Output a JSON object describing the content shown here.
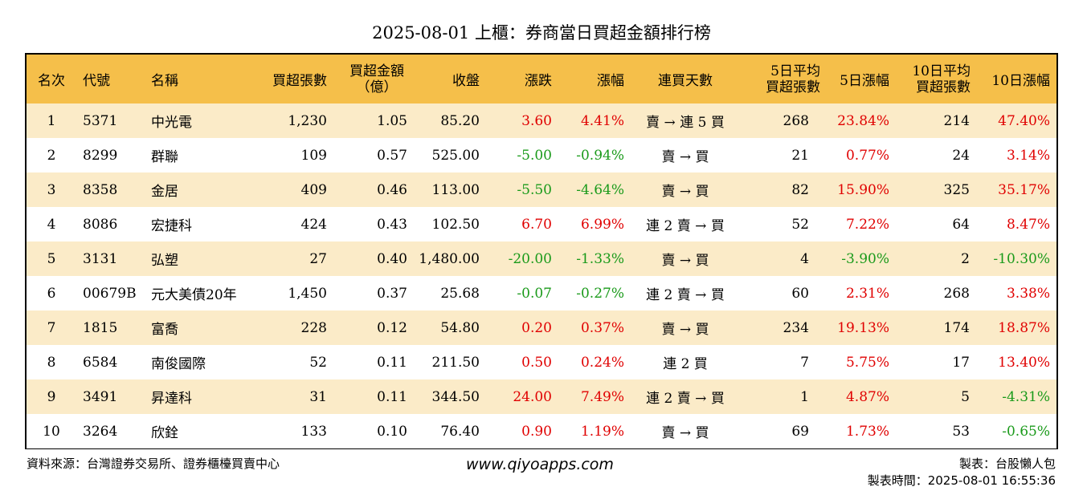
{
  "title": "2025-08-01 上櫃：券商當日買超金額排行榜",
  "headers": {
    "rank": "名次",
    "code": "代號",
    "name": "名稱",
    "buy_volume": "買超張數",
    "buy_amount_1": "買超金額",
    "buy_amount_2": "（億）",
    "close": "收盤",
    "change": "漲跌",
    "pct": "漲幅",
    "days": "連買天數",
    "avg5_1": "5日平均",
    "avg5_2": "買超張數",
    "pct5": "5日漲幅",
    "avg10_1": "10日平均",
    "avg10_2": "買超張數",
    "pct10": "10日漲幅"
  },
  "rows": [
    {
      "rank": "1",
      "code": "5371",
      "name": "中光電",
      "vol": "1,230",
      "amt": "1.05",
      "close": "85.20",
      "chg": "3.60",
      "chg_dir": "up",
      "pct": "4.41%",
      "pct_dir": "up",
      "days": "賣 → 連 5 買",
      "avg5": "268",
      "pct5": "23.84%",
      "pct5_dir": "up",
      "avg10": "214",
      "pct10": "47.40%",
      "pct10_dir": "up"
    },
    {
      "rank": "2",
      "code": "8299",
      "name": "群聯",
      "vol": "109",
      "amt": "0.57",
      "close": "525.00",
      "chg": "-5.00",
      "chg_dir": "down",
      "pct": "-0.94%",
      "pct_dir": "down",
      "days": "賣 → 買",
      "avg5": "21",
      "pct5": "0.77%",
      "pct5_dir": "up",
      "avg10": "24",
      "pct10": "3.14%",
      "pct10_dir": "up"
    },
    {
      "rank": "3",
      "code": "8358",
      "name": "金居",
      "vol": "409",
      "amt": "0.46",
      "close": "113.00",
      "chg": "-5.50",
      "chg_dir": "down",
      "pct": "-4.64%",
      "pct_dir": "down",
      "days": "賣 → 買",
      "avg5": "82",
      "pct5": "15.90%",
      "pct5_dir": "up",
      "avg10": "325",
      "pct10": "35.17%",
      "pct10_dir": "up"
    },
    {
      "rank": "4",
      "code": "8086",
      "name": "宏捷科",
      "vol": "424",
      "amt": "0.43",
      "close": "102.50",
      "chg": "6.70",
      "chg_dir": "up",
      "pct": "6.99%",
      "pct_dir": "up",
      "days": "連 2 賣 → 買",
      "avg5": "52",
      "pct5": "7.22%",
      "pct5_dir": "up",
      "avg10": "64",
      "pct10": "8.47%",
      "pct10_dir": "up"
    },
    {
      "rank": "5",
      "code": "3131",
      "name": "弘塑",
      "vol": "27",
      "amt": "0.40",
      "close": "1,480.00",
      "chg": "-20.00",
      "chg_dir": "down",
      "pct": "-1.33%",
      "pct_dir": "down",
      "days": "賣 → 買",
      "avg5": "4",
      "pct5": "-3.90%",
      "pct5_dir": "down",
      "avg10": "2",
      "pct10": "-10.30%",
      "pct10_dir": "down"
    },
    {
      "rank": "6",
      "code": "00679B",
      "name": "元大美債20年",
      "vol": "1,450",
      "amt": "0.37",
      "close": "25.68",
      "chg": "-0.07",
      "chg_dir": "down",
      "pct": "-0.27%",
      "pct_dir": "down",
      "days": "連 2 賣 → 買",
      "avg5": "60",
      "pct5": "2.31%",
      "pct5_dir": "up",
      "avg10": "268",
      "pct10": "3.38%",
      "pct10_dir": "up"
    },
    {
      "rank": "7",
      "code": "1815",
      "name": "富喬",
      "vol": "228",
      "amt": "0.12",
      "close": "54.80",
      "chg": "0.20",
      "chg_dir": "up",
      "pct": "0.37%",
      "pct_dir": "up",
      "days": "賣 → 買",
      "avg5": "234",
      "pct5": "19.13%",
      "pct5_dir": "up",
      "avg10": "174",
      "pct10": "18.87%",
      "pct10_dir": "up"
    },
    {
      "rank": "8",
      "code": "6584",
      "name": "南俊國際",
      "vol": "52",
      "amt": "0.11",
      "close": "211.50",
      "chg": "0.50",
      "chg_dir": "up",
      "pct": "0.24%",
      "pct_dir": "up",
      "days": "連 2 買",
      "avg5": "7",
      "pct5": "5.75%",
      "pct5_dir": "up",
      "avg10": "17",
      "pct10": "13.40%",
      "pct10_dir": "up"
    },
    {
      "rank": "9",
      "code": "3491",
      "name": "昇達科",
      "vol": "31",
      "amt": "0.11",
      "close": "344.50",
      "chg": "24.00",
      "chg_dir": "up",
      "pct": "7.49%",
      "pct_dir": "up",
      "days": "連 2 賣 → 買",
      "avg5": "1",
      "pct5": "4.87%",
      "pct5_dir": "up",
      "avg10": "5",
      "pct10": "-4.31%",
      "pct10_dir": "down"
    },
    {
      "rank": "10",
      "code": "3264",
      "name": "欣銓",
      "vol": "133",
      "amt": "0.10",
      "close": "76.40",
      "chg": "0.90",
      "chg_dir": "up",
      "pct": "1.19%",
      "pct_dir": "up",
      "days": "賣 → 買",
      "avg5": "69",
      "pct5": "1.73%",
      "pct5_dir": "up",
      "avg10": "53",
      "pct10": "-0.65%",
      "pct10_dir": "down"
    }
  ],
  "footer": {
    "source": "資料來源：台灣證券交易所、證券櫃檯買賣中心",
    "site": "www.qiyoapps.com",
    "maker": "製表：台股懶人包",
    "made_time": "製表時間：2025-08-01 16:55:36"
  },
  "colors": {
    "header_bg": "#f5bf4a",
    "odd_row_bg": "#fbebc8",
    "up": "#e00000",
    "down": "#1a9a1a"
  }
}
